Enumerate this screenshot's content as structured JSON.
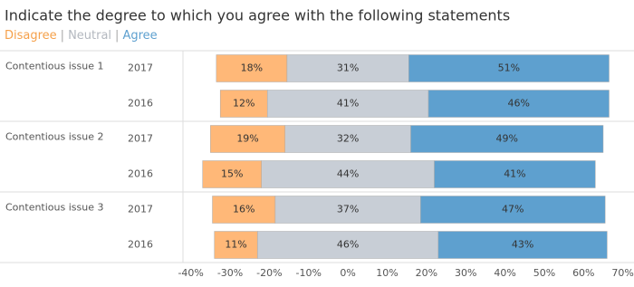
{
  "chart_data": {
    "type": "diverging-bar",
    "title": "Indicate the degree to which you agree with the following statements",
    "legend_separator": "|",
    "groups": [
      "Contentious issue 1",
      "Contentious issue 2",
      "Contentious issue 3"
    ],
    "categories": [
      "2017",
      "2016",
      "2017",
      "2016",
      "2017",
      "2016"
    ],
    "series": [
      {
        "name": "Disagree",
        "color": "#ffb878",
        "text_color": "#f5a04a",
        "values": [
          18,
          12,
          19,
          15,
          16,
          11
        ],
        "value_labels": [
          "18%",
          "12%",
          "19%",
          "15%",
          "16%",
          "11%"
        ]
      },
      {
        "name": "Neutral",
        "color": "#c8ced6",
        "text_color": "#b3b8bf",
        "values": [
          31,
          41,
          32,
          44,
          37,
          46
        ],
        "value_labels": [
          "31%",
          "41%",
          "32%",
          "44%",
          "37%",
          "46%"
        ]
      },
      {
        "name": "Agree",
        "color": "#5ea0cf",
        "text_color": "#5ea0cf",
        "values": [
          51,
          46,
          49,
          41,
          47,
          43
        ],
        "value_labels": [
          "51%",
          "46%",
          "49%",
          "41%",
          "47%",
          "43%"
        ]
      }
    ],
    "xlim": [
      -42,
      71
    ],
    "xticks": [
      {
        "value": -40,
        "label": "-40%"
      },
      {
        "value": -30,
        "label": "-30%"
      },
      {
        "value": -20,
        "label": "-20%"
      },
      {
        "value": -10,
        "label": "-10%"
      },
      {
        "value": 0,
        "label": "0%"
      },
      {
        "value": 10,
        "label": "10%"
      },
      {
        "value": 20,
        "label": "20%"
      },
      {
        "value": 30,
        "label": "30%"
      },
      {
        "value": 40,
        "label": "40%"
      },
      {
        "value": 50,
        "label": "50%"
      },
      {
        "value": 60,
        "label": "60%"
      },
      {
        "value": 70,
        "label": "70%"
      }
    ],
    "grid": false
  }
}
